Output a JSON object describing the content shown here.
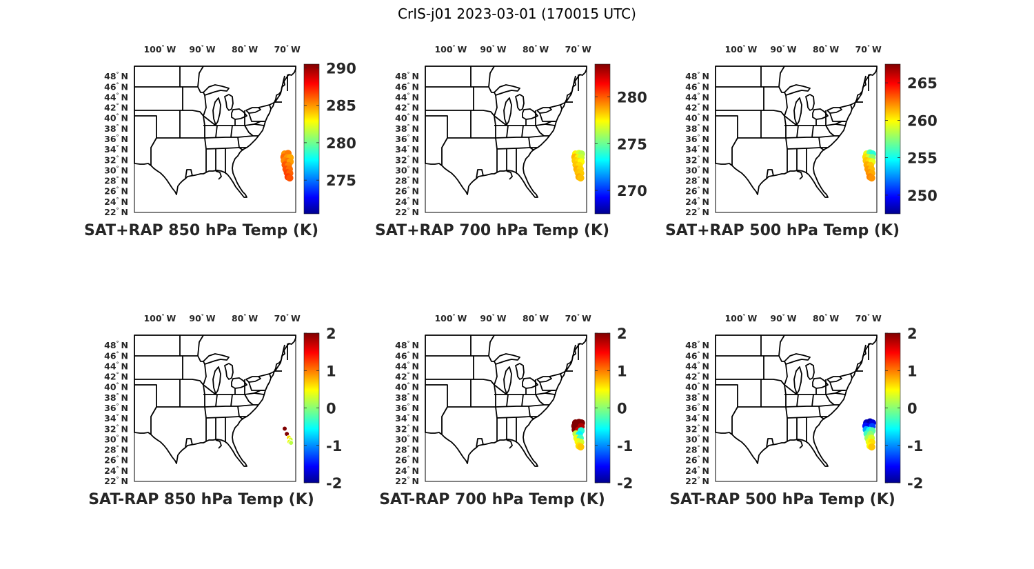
{
  "figure": {
    "title": "CrIS-j01 2023-03-01 (170015 UTC)"
  },
  "map": {
    "lon_ticks": [
      {
        "value": -100,
        "deg": "100",
        "hemi": "W"
      },
      {
        "value": -90,
        "deg": "90",
        "hemi": "W"
      },
      {
        "value": -80,
        "deg": "80",
        "hemi": "W"
      },
      {
        "value": -70,
        "deg": "70",
        "hemi": "W"
      }
    ],
    "lat_ticks": [
      {
        "value": 48,
        "deg": "48",
        "hemi": "N"
      },
      {
        "value": 46,
        "deg": "46",
        "hemi": "N"
      },
      {
        "value": 44,
        "deg": "44",
        "hemi": "N"
      },
      {
        "value": 42,
        "deg": "42",
        "hemi": "N"
      },
      {
        "value": 40,
        "deg": "40",
        "hemi": "N"
      },
      {
        "value": 38,
        "deg": "38",
        "hemi": "N"
      },
      {
        "value": 36,
        "deg": "36",
        "hemi": "N"
      },
      {
        "value": 34,
        "deg": "34",
        "hemi": "N"
      },
      {
        "value": 32,
        "deg": "32",
        "hemi": "N"
      },
      {
        "value": 30,
        "deg": "30",
        "hemi": "N"
      },
      {
        "value": 28,
        "deg": "28",
        "hemi": "N"
      },
      {
        "value": 26,
        "deg": "26",
        "hemi": "N"
      },
      {
        "value": 24,
        "deg": "24",
        "hemi": "N"
      },
      {
        "value": 22,
        "deg": "22",
        "hemi": "N"
      }
    ],
    "lon_range": [
      -106,
      -68
    ],
    "lat_range": [
      22,
      50
    ],
    "colormap": "jet",
    "colormap_stops": [
      "#00008f",
      "#0000ff",
      "#00ffff",
      "#ffff00",
      "#ff0000",
      "#800000"
    ]
  },
  "panels": [
    {
      "id": "sat-rap-sum-850",
      "title": "SAT+RAP 850 hPa Temp (K)",
      "colorbar": {
        "min": 270.5,
        "max": 290.5,
        "ticks": [
          "290",
          "285",
          "280",
          "275"
        ],
        "tick_values": [
          290,
          285,
          280,
          275
        ]
      },
      "marker": "swath",
      "points": [
        {
          "lon": -70.6,
          "lat": 33.2,
          "value": 285
        },
        {
          "lon": -69.8,
          "lat": 33.3,
          "value": 285.5
        },
        {
          "lon": -70.8,
          "lat": 32.6,
          "value": 285.8
        },
        {
          "lon": -70.0,
          "lat": 32.5,
          "value": 285
        },
        {
          "lon": -69.3,
          "lat": 32.5,
          "value": 284.6
        },
        {
          "lon": -70.7,
          "lat": 31.9,
          "value": 285.3
        },
        {
          "lon": -69.9,
          "lat": 31.8,
          "value": 285.6
        },
        {
          "lon": -69.3,
          "lat": 31.7,
          "value": 284.8
        },
        {
          "lon": -70.5,
          "lat": 31.1,
          "value": 286.2
        },
        {
          "lon": -69.7,
          "lat": 31.0,
          "value": 285.4
        },
        {
          "lon": -70.3,
          "lat": 30.3,
          "value": 286.4
        },
        {
          "lon": -69.5,
          "lat": 30.3,
          "value": 285.7
        },
        {
          "lon": -70.0,
          "lat": 29.6,
          "value": 286.6
        },
        {
          "lon": -69.4,
          "lat": 29.5,
          "value": 286
        },
        {
          "lon": -69.8,
          "lat": 28.8,
          "value": 286.8
        },
        {
          "lon": -69.4,
          "lat": 28.6,
          "value": 286.3
        }
      ]
    },
    {
      "id": "sat-rap-sum-700",
      "title": "SAT+RAP 700 hPa Temp (K)",
      "colorbar": {
        "min": 267.5,
        "max": 283.5,
        "ticks": [
          "280",
          "275",
          "270"
        ],
        "tick_values": [
          280,
          275,
          270
        ]
      },
      "marker": "swath",
      "points": [
        {
          "lon": -70.6,
          "lat": 33.2,
          "value": 277.6
        },
        {
          "lon": -69.8,
          "lat": 33.3,
          "value": 276.8
        },
        {
          "lon": -69.2,
          "lat": 33.2,
          "value": 276.2
        },
        {
          "lon": -70.8,
          "lat": 32.6,
          "value": 278.5
        },
        {
          "lon": -70.0,
          "lat": 32.5,
          "value": 277.6
        },
        {
          "lon": -69.3,
          "lat": 32.5,
          "value": 276.6
        },
        {
          "lon": -70.7,
          "lat": 31.9,
          "value": 278.2
        },
        {
          "lon": -69.9,
          "lat": 31.8,
          "value": 277.9
        },
        {
          "lon": -69.3,
          "lat": 31.7,
          "value": 277.4
        },
        {
          "lon": -70.5,
          "lat": 31.1,
          "value": 278.3
        },
        {
          "lon": -69.7,
          "lat": 31.0,
          "value": 277.9
        },
        {
          "lon": -70.3,
          "lat": 30.3,
          "value": 278.6
        },
        {
          "lon": -69.5,
          "lat": 30.3,
          "value": 278.1
        },
        {
          "lon": -70.0,
          "lat": 29.6,
          "value": 278.4
        },
        {
          "lon": -69.4,
          "lat": 29.5,
          "value": 278.2
        },
        {
          "lon": -69.8,
          "lat": 28.8,
          "value": 278.7
        },
        {
          "lon": -69.4,
          "lat": 28.6,
          "value": 278.4
        }
      ]
    },
    {
      "id": "sat-rap-sum-500",
      "title": "SAT+RAP 500 hPa Temp (K)",
      "colorbar": {
        "min": 247.5,
        "max": 267.5,
        "ticks": [
          "265",
          "260",
          "255",
          "250"
        ],
        "tick_values": [
          265,
          260,
          255,
          250
        ]
      },
      "marker": "swath",
      "points": [
        {
          "lon": -70.4,
          "lat": 33.2,
          "value": 259.5
        },
        {
          "lon": -69.6,
          "lat": 33.4,
          "value": 256.5
        },
        {
          "lon": -69.0,
          "lat": 33.2,
          "value": 255.5
        },
        {
          "lon": -70.6,
          "lat": 32.6,
          "value": 260.5
        },
        {
          "lon": -69.8,
          "lat": 32.5,
          "value": 259
        },
        {
          "lon": -69.1,
          "lat": 32.5,
          "value": 257.5
        },
        {
          "lon": -70.5,
          "lat": 31.9,
          "value": 261
        },
        {
          "lon": -69.7,
          "lat": 31.8,
          "value": 260.5
        },
        {
          "lon": -69.1,
          "lat": 31.7,
          "value": 259.5
        },
        {
          "lon": -70.3,
          "lat": 31.1,
          "value": 261.5
        },
        {
          "lon": -69.5,
          "lat": 31.0,
          "value": 261
        },
        {
          "lon": -70.1,
          "lat": 30.3,
          "value": 261.8
        },
        {
          "lon": -69.3,
          "lat": 30.3,
          "value": 261.2
        },
        {
          "lon": -69.8,
          "lat": 29.6,
          "value": 262
        },
        {
          "lon": -69.2,
          "lat": 29.5,
          "value": 261.5
        },
        {
          "lon": -69.6,
          "lat": 28.8,
          "value": 262.3
        },
        {
          "lon": -69.2,
          "lat": 28.6,
          "value": 262
        }
      ]
    },
    {
      "id": "sat-rap-diff-850",
      "title": "SAT-RAP 850 hPa Temp (K)",
      "colorbar": {
        "min": -2,
        "max": 2,
        "ticks": [
          "2",
          "1",
          "0",
          "-1",
          "-2"
        ],
        "tick_values": [
          2,
          1,
          0,
          -1,
          -2
        ]
      },
      "marker": "dots",
      "points": [
        {
          "lon": -70.6,
          "lat": 32.1,
          "value": 2
        },
        {
          "lon": -70.1,
          "lat": 31.1,
          "value": 2
        },
        {
          "lon": -69.6,
          "lat": 30.4,
          "value": 0.6
        },
        {
          "lon": -69.2,
          "lat": 30.0,
          "value": 0.3
        },
        {
          "lon": -69.5,
          "lat": 29.6,
          "value": 0.4
        },
        {
          "lon": -69.1,
          "lat": 29.4,
          "value": 0.2
        }
      ]
    },
    {
      "id": "sat-rap-diff-700",
      "title": "SAT-RAP 700 hPa Temp (K)",
      "colorbar": {
        "min": -2,
        "max": 2,
        "ticks": [
          "2",
          "1",
          "0",
          "-1",
          "-2"
        ],
        "tick_values": [
          2,
          1,
          0,
          -1,
          -2
        ]
      },
      "marker": "swath",
      "points": [
        {
          "lon": -70.6,
          "lat": 33.2,
          "value": 2
        },
        {
          "lon": -69.8,
          "lat": 33.3,
          "value": 2
        },
        {
          "lon": -69.2,
          "lat": 33.2,
          "value": 2
        },
        {
          "lon": -70.8,
          "lat": 32.6,
          "value": 2
        },
        {
          "lon": -70.0,
          "lat": 32.5,
          "value": 2
        },
        {
          "lon": -69.3,
          "lat": 32.5,
          "value": 1.8
        },
        {
          "lon": -70.7,
          "lat": 31.9,
          "value": 2
        },
        {
          "lon": -69.9,
          "lat": 31.8,
          "value": 1.7
        },
        {
          "lon": -69.3,
          "lat": 31.7,
          "value": -0.4
        },
        {
          "lon": -70.5,
          "lat": 31.1,
          "value": 0.2
        },
        {
          "lon": -69.7,
          "lat": 31.0,
          "value": -0.6
        },
        {
          "lon": -70.3,
          "lat": 30.3,
          "value": 0.4
        },
        {
          "lon": -69.5,
          "lat": 30.3,
          "value": -0.3
        },
        {
          "lon": -70.0,
          "lat": 29.6,
          "value": 0.5
        },
        {
          "lon": -69.4,
          "lat": 29.5,
          "value": 0.3
        },
        {
          "lon": -69.8,
          "lat": 28.8,
          "value": 0.6
        },
        {
          "lon": -69.4,
          "lat": 28.6,
          "value": 0.7
        }
      ]
    },
    {
      "id": "sat-rap-diff-500",
      "title": "SAT-RAP 500 hPa Temp (K)",
      "colorbar": {
        "min": -2,
        "max": 2,
        "ticks": [
          "2",
          "1",
          "0",
          "-1",
          "-2"
        ],
        "tick_values": [
          2,
          1,
          0,
          -1,
          -2
        ]
      },
      "marker": "swath",
      "points": [
        {
          "lon": -70.4,
          "lat": 33.2,
          "value": -1.8
        },
        {
          "lon": -69.6,
          "lat": 33.4,
          "value": -1.9
        },
        {
          "lon": -69.0,
          "lat": 33.2,
          "value": -1.7
        },
        {
          "lon": -70.6,
          "lat": 32.6,
          "value": -1.5
        },
        {
          "lon": -69.8,
          "lat": 32.5,
          "value": -1.6
        },
        {
          "lon": -69.1,
          "lat": 32.5,
          "value": -1.3
        },
        {
          "lon": -70.5,
          "lat": 31.9,
          "value": -0.9
        },
        {
          "lon": -69.7,
          "lat": 31.8,
          "value": -0.5
        },
        {
          "lon": -69.1,
          "lat": 31.7,
          "value": -0.2
        },
        {
          "lon": -70.3,
          "lat": 31.1,
          "value": -0.3
        },
        {
          "lon": -69.5,
          "lat": 31.0,
          "value": 0
        },
        {
          "lon": -70.1,
          "lat": 30.3,
          "value": 0.1
        },
        {
          "lon": -69.3,
          "lat": 30.3,
          "value": 0.3
        },
        {
          "lon": -69.8,
          "lat": 29.6,
          "value": 0.4
        },
        {
          "lon": -69.2,
          "lat": 29.5,
          "value": 0.6
        },
        {
          "lon": -69.6,
          "lat": 28.8,
          "value": 0.5
        },
        {
          "lon": -69.2,
          "lat": 28.6,
          "value": 0.7
        }
      ]
    }
  ]
}
